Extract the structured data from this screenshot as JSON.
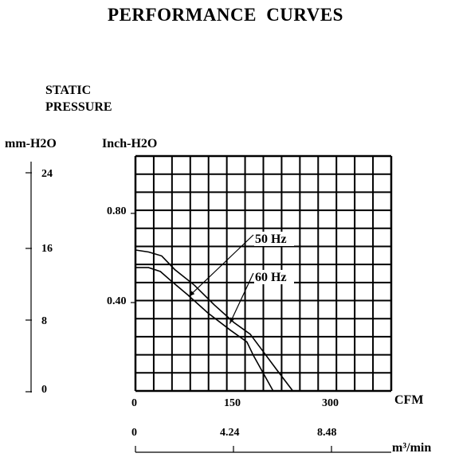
{
  "title": "PERFORMANCE  CURVES",
  "chart_data": {
    "type": "line",
    "title": "PERFORMANCE  CURVES",
    "ylabel": "STATIC PRESSURE",
    "ylabel_line1": "STATIC",
    "ylabel_line2": "PRESSURE",
    "y_unit_left": "mm-H2O",
    "y_unit_right": "Inch-H2O",
    "x_unit_cfm": "CFM",
    "x_unit_m3": "m³/min",
    "xlim_cfm": [
      0,
      390
    ],
    "ylim_inch": [
      0,
      1.2
    ],
    "grid": true,
    "y_ticks_mm": [
      "24",
      "16",
      "8",
      "0"
    ],
    "y_ticks_inch": [
      "0.80",
      "0.40"
    ],
    "x_ticks_cfm": [
      "0",
      "150",
      "300"
    ],
    "x_ticks_m3": [
      "0",
      "4.24",
      "8.48"
    ],
    "series": [
      {
        "name": "50 Hz",
        "x": [
          0,
          20,
          38,
          55,
          80,
          110,
          145,
          170,
          180,
          195,
          210
        ],
        "y": [
          0.63,
          0.63,
          0.61,
          0.56,
          0.49,
          0.4,
          0.31,
          0.25,
          0.18,
          0.09,
          0.0
        ]
      },
      {
        "name": "60 Hz",
        "x": [
          0,
          20,
          40,
          60,
          90,
          120,
          150,
          175,
          195,
          215,
          240
        ],
        "y": [
          0.72,
          0.71,
          0.69,
          0.62,
          0.54,
          0.44,
          0.35,
          0.29,
          0.2,
          0.11,
          0.0
        ]
      }
    ]
  }
}
